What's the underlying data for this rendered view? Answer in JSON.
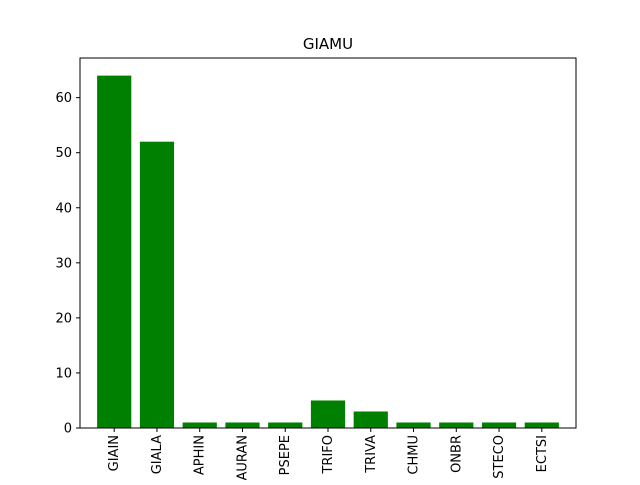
{
  "chart_data": {
    "type": "bar",
    "title": "GIAMU",
    "xlabel": "",
    "ylabel": "",
    "categories": [
      "GIAIN",
      "GIALA",
      "APHIN",
      "AURAN",
      "PSEPE",
      "TRIFO",
      "TRIVA",
      "CHMU",
      "ONBR",
      "STECO",
      "ECTSI"
    ],
    "values": [
      64,
      52,
      1,
      1,
      1,
      5,
      3,
      1,
      1,
      1,
      1
    ],
    "ylim": [
      0,
      67.2
    ],
    "yticks": [
      0,
      10,
      20,
      30,
      40,
      50,
      60
    ],
    "bar_color": "#008000",
    "grid": false,
    "legend": "none"
  }
}
